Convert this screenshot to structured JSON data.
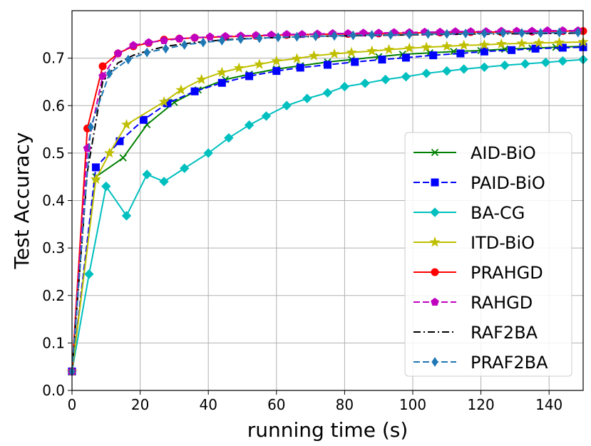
{
  "chart_data": {
    "type": "line",
    "title": "",
    "xlabel": "running time  (s)",
    "ylabel": "Test Accuracy",
    "xlim": [
      0,
      150
    ],
    "ylim": [
      0,
      0.8
    ],
    "grid": true,
    "legend_position": "center-right",
    "xticks": [
      0,
      20,
      40,
      60,
      80,
      100,
      120,
      140
    ],
    "yticks": [
      0.0,
      0.1,
      0.2,
      0.3,
      0.4,
      0.5,
      0.6,
      0.7
    ],
    "xtick_labels": [
      "0",
      "20",
      "40",
      "60",
      "80",
      "100",
      "120",
      "140"
    ],
    "ytick_labels": [
      "0.0",
      "0.1",
      "0.2",
      "0.3",
      "0.4",
      "0.5",
      "0.6",
      "0.7"
    ],
    "series": [
      {
        "name": "AID-BiO",
        "color": "#008000",
        "dash": "solid",
        "marker": "x",
        "x": [
          0,
          7,
          15,
          22,
          30,
          37,
          45,
          52,
          60,
          67,
          75,
          82,
          90,
          97,
          105,
          112,
          120,
          127,
          135,
          142,
          150
        ],
        "y": [
          0.04,
          0.45,
          0.49,
          0.56,
          0.607,
          0.633,
          0.655,
          0.666,
          0.677,
          0.684,
          0.692,
          0.697,
          0.703,
          0.708,
          0.711,
          0.714,
          0.716,
          0.719,
          0.721,
          0.723,
          0.725
        ]
      },
      {
        "name": "PAID-BiO",
        "color": "#0000ff",
        "dash": "dashed",
        "marker": "square",
        "x": [
          0,
          7,
          14,
          21,
          28,
          36,
          44,
          52,
          60,
          67,
          75,
          83,
          91,
          98,
          106,
          114,
          121,
          129,
          136,
          144,
          150
        ],
        "y": [
          0.04,
          0.47,
          0.525,
          0.57,
          0.605,
          0.63,
          0.648,
          0.662,
          0.673,
          0.68,
          0.686,
          0.692,
          0.697,
          0.701,
          0.706,
          0.71,
          0.714,
          0.717,
          0.72,
          0.722,
          0.723
        ]
      },
      {
        "name": "BA-CG",
        "color": "#00bfbf",
        "dash": "solid",
        "marker": "diamond",
        "x": [
          0,
          5,
          10,
          16,
          22,
          27,
          33,
          40,
          46,
          52,
          57,
          63,
          69,
          75,
          80,
          86,
          92,
          98,
          104,
          110,
          115,
          121,
          127,
          133,
          139,
          144,
          150
        ],
        "y": [
          0.04,
          0.245,
          0.43,
          0.368,
          0.455,
          0.44,
          0.468,
          0.5,
          0.532,
          0.559,
          0.578,
          0.6,
          0.615,
          0.627,
          0.64,
          0.647,
          0.655,
          0.661,
          0.668,
          0.673,
          0.677,
          0.681,
          0.685,
          0.688,
          0.691,
          0.694,
          0.697
        ]
      },
      {
        "name": "ITD-BiO",
        "color": "#bfbf00",
        "dash": "solid",
        "marker": "star",
        "x": [
          0,
          7,
          11,
          16,
          27,
          32,
          38,
          44,
          49,
          55,
          60,
          66,
          71,
          77,
          82,
          88,
          93,
          99,
          104,
          110,
          115,
          121,
          126,
          132,
          137,
          143,
          150
        ],
        "y": [
          0.04,
          0.445,
          0.5,
          0.56,
          0.608,
          0.633,
          0.655,
          0.67,
          0.679,
          0.687,
          0.694,
          0.699,
          0.705,
          0.709,
          0.712,
          0.715,
          0.718,
          0.721,
          0.723,
          0.725,
          0.727,
          0.728,
          0.73,
          0.731,
          0.732,
          0.733,
          0.734
        ]
      },
      {
        "name": "PRAHGD",
        "color": "#ff0000",
        "dash": "solid",
        "marker": "circle",
        "x": [
          0,
          4.5,
          9,
          13.5,
          18,
          22.5,
          27,
          31.5,
          36,
          45,
          54,
          63,
          72,
          81,
          90,
          99,
          108,
          117,
          126,
          135,
          144,
          150
        ],
        "y": [
          0.04,
          0.552,
          0.683,
          0.71,
          0.725,
          0.732,
          0.739,
          0.741,
          0.743,
          0.745,
          0.747,
          0.749,
          0.75,
          0.751,
          0.752,
          0.753,
          0.754,
          0.755,
          0.755,
          0.756,
          0.757,
          0.757
        ]
      },
      {
        "name": "RAHGD",
        "color": "#bf00bf",
        "dash": "dashed",
        "marker": "pentagon",
        "x": [
          0,
          4.5,
          9,
          13.5,
          18,
          22.5,
          27,
          31.5,
          36,
          40.5,
          45,
          49.5,
          54,
          58.5,
          63,
          67.5,
          72,
          76.5,
          81,
          85.5,
          90,
          94.5,
          99,
          103.5,
          108,
          112.5,
          117,
          121.5,
          126,
          130.5,
          135,
          139.5,
          144,
          148.5
        ],
        "y": [
          0.04,
          0.51,
          0.662,
          0.71,
          0.727,
          0.733,
          0.737,
          0.741,
          0.743,
          0.745,
          0.746,
          0.747,
          0.748,
          0.749,
          0.75,
          0.75,
          0.751,
          0.752,
          0.752,
          0.753,
          0.753,
          0.754,
          0.754,
          0.755,
          0.755,
          0.756,
          0.756,
          0.756,
          0.757,
          0.757,
          0.757,
          0.758,
          0.758,
          0.758
        ]
      },
      {
        "name": "RAF2BA",
        "color": "#000000",
        "dash": "dashdot",
        "marker": "none",
        "x": [
          0,
          4.5,
          9,
          13.5,
          18,
          22.5,
          27,
          31.5,
          36,
          45,
          54,
          63,
          72,
          81,
          90,
          99,
          108,
          117,
          126,
          135,
          144,
          150
        ],
        "y": [
          0.04,
          0.46,
          0.65,
          0.69,
          0.706,
          0.716,
          0.724,
          0.729,
          0.733,
          0.739,
          0.742,
          0.744,
          0.746,
          0.747,
          0.748,
          0.749,
          0.75,
          0.751,
          0.751,
          0.752,
          0.752,
          0.753
        ]
      },
      {
        "name": "PRAF2BA",
        "color": "#1f77b4",
        "dash": "dashed",
        "marker": "thin_diamond",
        "x": [
          0,
          5.5,
          11,
          16.5,
          22,
          27.5,
          33,
          38.5,
          44,
          49.5,
          55,
          60.5,
          66,
          71.5,
          77,
          82.5,
          88,
          93.5,
          99,
          104.5,
          110,
          115.5,
          121,
          126.5,
          132,
          137.5,
          143,
          148.5
        ],
        "y": [
          0.04,
          0.555,
          0.668,
          0.697,
          0.712,
          0.72,
          0.728,
          0.733,
          0.737,
          0.74,
          0.742,
          0.744,
          0.745,
          0.746,
          0.747,
          0.748,
          0.749,
          0.749,
          0.75,
          0.751,
          0.751,
          0.752,
          0.752,
          0.753,
          0.753,
          0.753,
          0.754,
          0.754
        ]
      }
    ]
  }
}
